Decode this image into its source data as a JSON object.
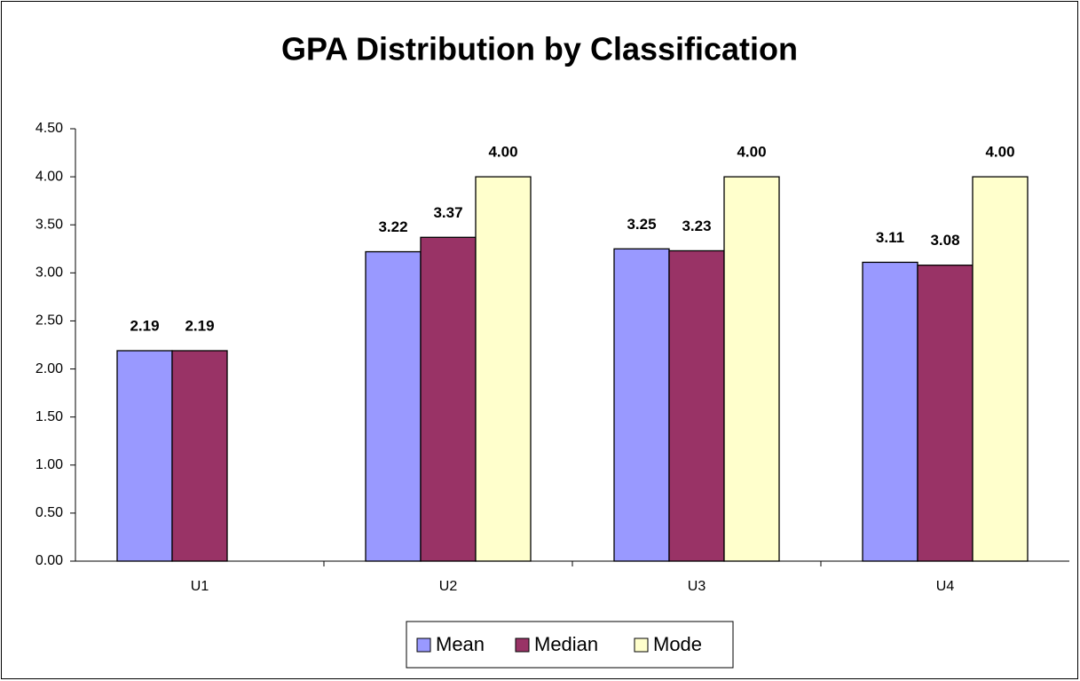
{
  "chart_data": {
    "type": "bar",
    "title": "GPA Distribution by Classification",
    "categories": [
      "U1",
      "U2",
      "U3",
      "U4"
    ],
    "series": [
      {
        "name": "Mean",
        "color": "#9999ff",
        "values": [
          2.19,
          3.22,
          3.25,
          3.11
        ]
      },
      {
        "name": "Median",
        "color": "#993366",
        "values": [
          2.19,
          3.37,
          3.23,
          3.08
        ]
      },
      {
        "name": "Mode",
        "color": "#ffffcc",
        "values": [
          null,
          4,
          4,
          4
        ],
        "value_labels": [
          null,
          "4.00",
          "4.00",
          "4.00"
        ]
      }
    ],
    "ylim": [
      0,
      4.5
    ],
    "yticks": [
      {
        "value": 0,
        "label": "0.00"
      },
      {
        "value": 0.5,
        "label": "0.50"
      },
      {
        "value": 1,
        "label": "1.00"
      },
      {
        "value": 1.5,
        "label": "1.50"
      },
      {
        "value": 2,
        "label": "2.00"
      },
      {
        "value": 2.5,
        "label": "2.50"
      },
      {
        "value": 3,
        "label": "3.00"
      },
      {
        "value": 3.5,
        "label": "3.50"
      },
      {
        "value": 4,
        "label": "4.00"
      },
      {
        "value": 4.5,
        "label": "4.50"
      }
    ],
    "grid": false,
    "legend": "bottom"
  }
}
